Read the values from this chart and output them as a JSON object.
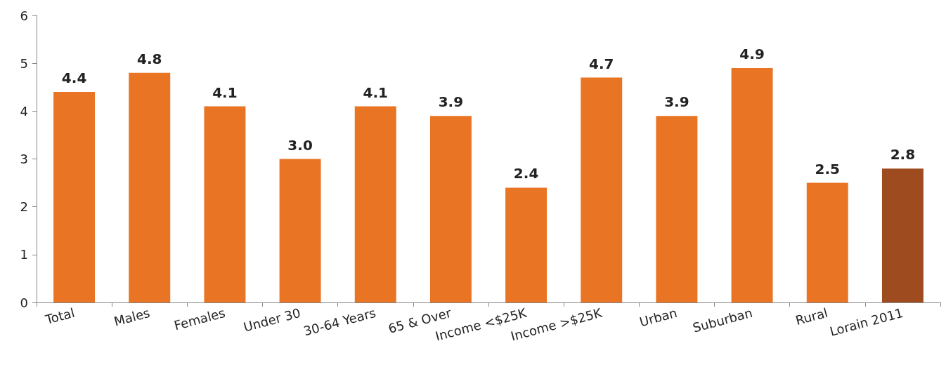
{
  "chart_data": {
    "type": "bar",
    "categories": [
      "Total",
      "Males",
      "Females",
      "Under 30",
      "30-64 Years",
      "65 & Over",
      "Income <$25K",
      "Income >$25K",
      "Urban",
      "Suburban",
      "Rural",
      "Lorain 2011"
    ],
    "values": [
      4.4,
      4.8,
      4.1,
      3.0,
      4.1,
      3.9,
      2.4,
      4.7,
      3.9,
      4.9,
      2.5,
      2.8
    ],
    "value_labels": [
      "4.4",
      "4.8",
      "4.1",
      "3.0",
      "4.1",
      "3.9",
      "2.4",
      "4.7",
      "3.9",
      "4.9",
      "2.5",
      "2.8"
    ],
    "colors": [
      "#e87424",
      "#e87424",
      "#e87424",
      "#e87424",
      "#e87424",
      "#e87424",
      "#e87424",
      "#e87424",
      "#e87424",
      "#e87424",
      "#e87424",
      "#9d4b1f"
    ],
    "ylim": [
      0,
      6
    ],
    "yticks": [
      0,
      1,
      2,
      3,
      4,
      5,
      6
    ],
    "grid": false
  }
}
